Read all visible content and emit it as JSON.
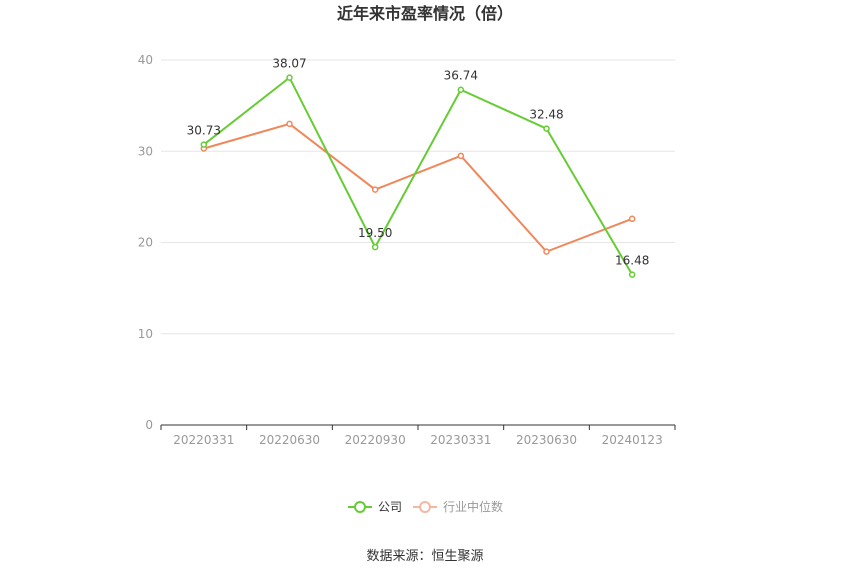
{
  "chart_data": {
    "type": "line",
    "title": "近年来市盈率情况（倍）",
    "categories": [
      "20220331",
      "20220630",
      "20220930",
      "20230331",
      "20230630",
      "20240123"
    ],
    "series": [
      {
        "name": "公司",
        "color": "#66cc33",
        "values": [
          30.73,
          38.07,
          19.5,
          36.74,
          32.48,
          16.48
        ],
        "labels": [
          "30.73",
          "38.07",
          "19.50",
          "36.74",
          "32.48",
          "16.48"
        ]
      },
      {
        "name": "行业中位数",
        "color": "#f0875a",
        "values": [
          30.3,
          33.0,
          25.8,
          29.5,
          19.0,
          22.6
        ]
      }
    ],
    "ylim": [
      0,
      40
    ],
    "yticks": [
      "0",
      "10",
      "20",
      "30",
      "40"
    ],
    "grid": true,
    "legend_position": "bottom-center",
    "source": "数据来源：恒生聚源"
  }
}
